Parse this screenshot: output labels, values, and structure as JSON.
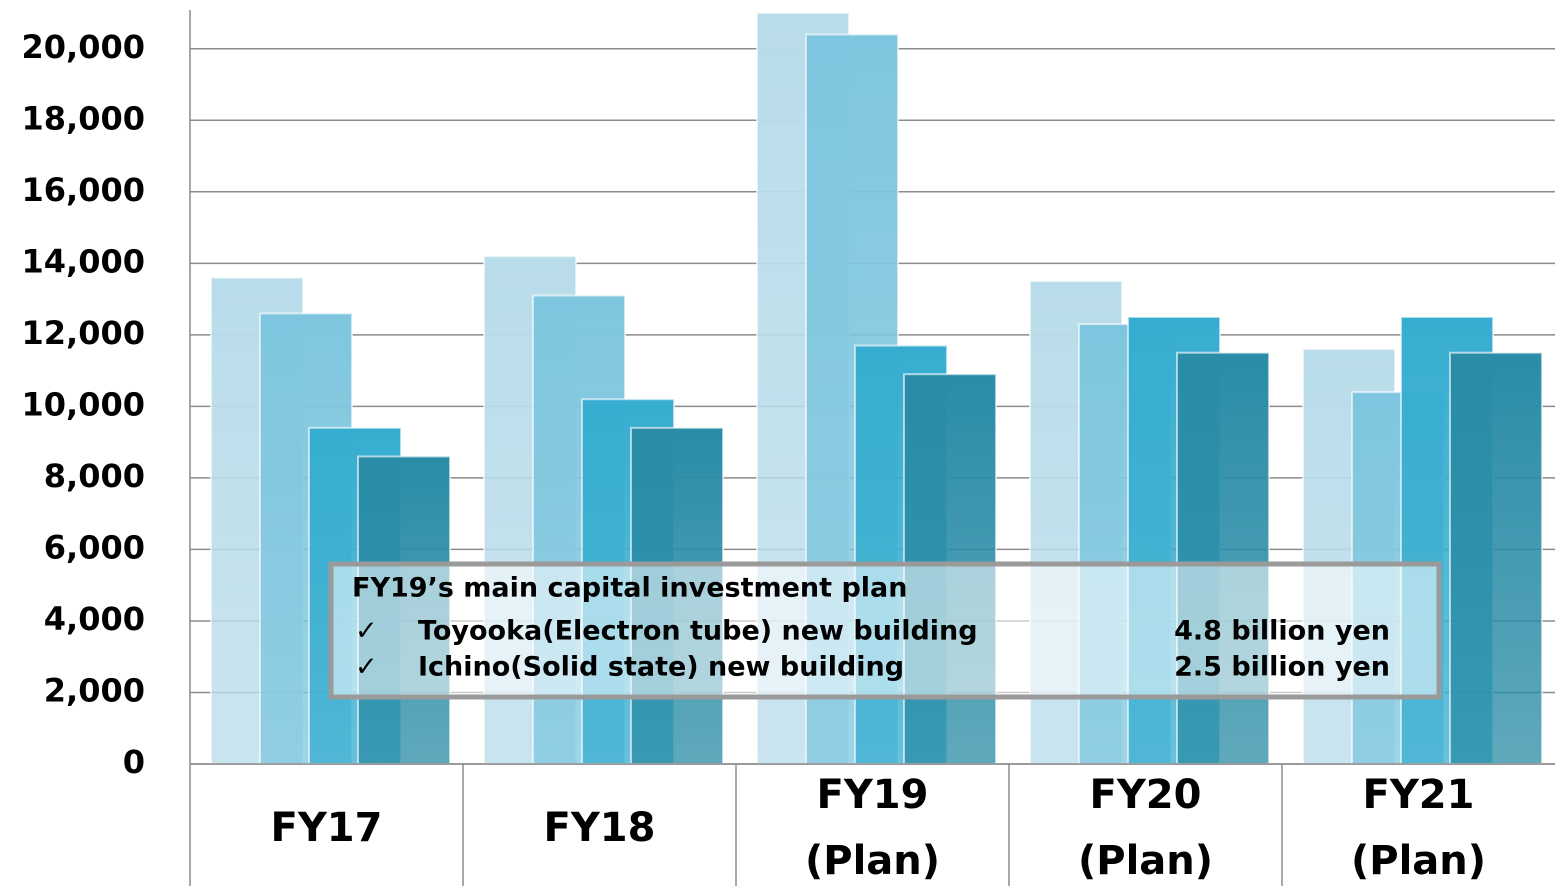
{
  "chart_data": {
    "type": "bar",
    "categories": [
      [
        "FY17"
      ],
      [
        "FY18"
      ],
      [
        "FY19",
        "(Plan)"
      ],
      [
        "FY20",
        "(Plan)"
      ],
      [
        "FY21",
        "(Plan)"
      ]
    ],
    "series": [
      {
        "color": "#b9dcea",
        "values": [
          13600,
          14200,
          21000,
          13500,
          11600
        ]
      },
      {
        "color": "#7ec6df",
        "values": [
          12600,
          13100,
          20400,
          12300,
          10400
        ]
      },
      {
        "color": "#36add0",
        "values": [
          9400,
          10200,
          11700,
          12500,
          12500
        ]
      },
      {
        "color": "#2a8ca6",
        "values": [
          8600,
          9400,
          10900,
          11500,
          11500
        ]
      }
    ],
    "ylim": [
      0,
      21000
    ],
    "yticks": [
      0,
      {
        "value": 2000,
        "label": "2,000"
      },
      {
        "value": 4000,
        "label": "4,000"
      },
      {
        "value": 6000,
        "label": "6,000"
      },
      {
        "value": 8000,
        "label": "8,000"
      },
      {
        "value": 10000,
        "label": "10,000"
      },
      {
        "value": 12000,
        "label": "12,000"
      },
      {
        "value": 14000,
        "label": "14,000"
      },
      {
        "value": 16000,
        "label": "16,000"
      },
      {
        "value": 18000,
        "label": "18,000"
      },
      {
        "value": 20000,
        "label": "20,000"
      }
    ],
    "grid": true,
    "annotation": {
      "title": "FY19’s main capital investment plan",
      "items": [
        {
          "mark": "✓",
          "label": "Toyooka(Electron tube) new building",
          "value": "4.8 billion yen"
        },
        {
          "mark": "✓",
          "label": "Ichino(Solid state) new building",
          "value": "2.5 billion yen"
        }
      ]
    }
  }
}
